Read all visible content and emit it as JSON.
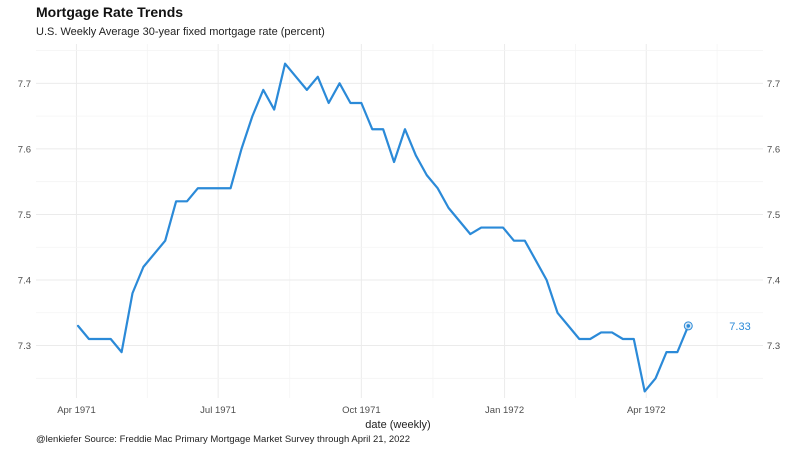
{
  "chart_data": {
    "type": "line",
    "title": "Mortgage Rate Trends",
    "subtitle": "U.S. Weekly Average 30-year fixed mortgage rate (percent)",
    "xlabel": "date (weekly)",
    "ylabel": "",
    "caption": "@lenkiefer Source: Freddie Mac Primary Mortgage Market Survey through April 21, 2022",
    "line_color": "#2b8ad8",
    "grid": true,
    "xlim": [
      "1971-03-06",
      "1972-06-15"
    ],
    "ylim": [
      7.22,
      7.76
    ],
    "x_ticks": [
      {
        "date": "1971-04-01",
        "label": "Apr 1971"
      },
      {
        "date": "1971-07-01",
        "label": "Jul 1971"
      },
      {
        "date": "1971-10-01",
        "label": "Oct 1971"
      },
      {
        "date": "1972-01-01",
        "label": "Jan 1972"
      },
      {
        "date": "1972-04-01",
        "label": "Apr 1972"
      }
    ],
    "y_ticks": [
      7.3,
      7.4,
      7.5,
      7.6,
      7.7
    ],
    "y_tick_labels": [
      "7.3",
      "7.4",
      "7.5",
      "7.6",
      "7.7"
    ],
    "end_label": "7.33",
    "series": [
      {
        "x": [
          "1971-04-02",
          "1971-04-09",
          "1971-04-16",
          "1971-04-23",
          "1971-04-30",
          "1971-05-07",
          "1971-05-14",
          "1971-05-21",
          "1971-05-28",
          "1971-06-04",
          "1971-06-11",
          "1971-06-18",
          "1971-06-25",
          "1971-07-02",
          "1971-07-09",
          "1971-07-16",
          "1971-07-23",
          "1971-07-30",
          "1971-08-06",
          "1971-08-13",
          "1971-08-20",
          "1971-08-27",
          "1971-09-03",
          "1971-09-10",
          "1971-09-17",
          "1971-09-24",
          "1971-10-01",
          "1971-10-08",
          "1971-10-15",
          "1971-10-22",
          "1971-10-29",
          "1971-11-05",
          "1971-11-12",
          "1971-11-19",
          "1971-11-26",
          "1971-12-03",
          "1971-12-10",
          "1971-12-17",
          "1971-12-24",
          "1971-12-31",
          "1972-01-07",
          "1972-01-14",
          "1972-01-21",
          "1972-01-28",
          "1972-02-04",
          "1972-02-11",
          "1972-02-18",
          "1972-02-25",
          "1972-03-03",
          "1972-03-10",
          "1972-03-17",
          "1972-03-24",
          "1972-03-31",
          "1972-04-07",
          "1972-04-14",
          "1972-04-21",
          "1972-04-28"
        ],
        "values": [
          7.33,
          7.31,
          7.31,
          7.31,
          7.29,
          7.38,
          7.42,
          7.44,
          7.46,
          7.52,
          7.52,
          7.54,
          7.54,
          7.54,
          7.54,
          7.6,
          7.65,
          7.69,
          7.66,
          7.73,
          7.71,
          7.69,
          7.71,
          7.67,
          7.7,
          7.67,
          7.67,
          7.63,
          7.63,
          7.58,
          7.63,
          7.59,
          7.56,
          7.54,
          7.51,
          7.49,
          7.47,
          7.48,
          7.48,
          7.48,
          7.46,
          7.46,
          7.43,
          7.4,
          7.35,
          7.33,
          7.31,
          7.31,
          7.32,
          7.32,
          7.31,
          7.31,
          7.23,
          7.25,
          7.29,
          7.29,
          7.33
        ]
      }
    ]
  }
}
